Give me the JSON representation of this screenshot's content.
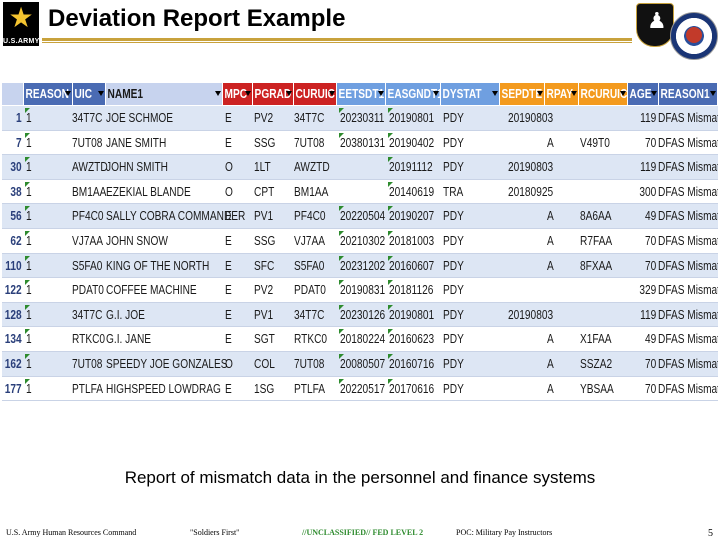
{
  "slide": {
    "title": "Deviation Report Example",
    "logo_text": "U.S.ARMY",
    "caption": "Report of mismatch data in the personnel and finance systems",
    "footer": {
      "org": "U.S. Army Human Resources Command",
      "motto": "\"Soldiers First\"",
      "classification": "//UNCLASSIFIED// FED LEVEL 2",
      "poc": "POC: Military Pay Instructors",
      "page": "5"
    }
  },
  "colors": {
    "header_blue": "#4a6bb3",
    "header_red": "#cc2222",
    "header_light_blue": "#6f9fe0",
    "header_orange": "#f39a1e",
    "row_light": "#dde6f4",
    "row_white": "#ffffff",
    "selected_header": "#c7d3ee",
    "classification_green": "#2e8b2e",
    "gold": "#c8a23c"
  },
  "table": {
    "columns": [
      {
        "key": "rownum",
        "label": ""
      },
      {
        "key": "reason",
        "label": "REASON"
      },
      {
        "key": "uic",
        "label": "UIC"
      },
      {
        "key": "name",
        "label": "NAME1"
      },
      {
        "key": "mpc",
        "label": "MPC"
      },
      {
        "key": "pgrad",
        "label": "PGRAD"
      },
      {
        "key": "curuic",
        "label": "CURUIC"
      },
      {
        "key": "eetsdt",
        "label": "EETSDT1"
      },
      {
        "key": "easgndt",
        "label": "EASGNDT1"
      },
      {
        "key": "dystat",
        "label": "DYSTAT"
      },
      {
        "key": "sepdte",
        "label": "SEPDTE"
      },
      {
        "key": "rpay",
        "label": "RPAY"
      },
      {
        "key": "rcuruic",
        "label": "RCURUIC"
      },
      {
        "key": "age",
        "label": "AGE"
      },
      {
        "key": "reason1",
        "label": "REASON1"
      }
    ],
    "rows": [
      {
        "rownum": "1",
        "reason": "1",
        "uic": "34T7C",
        "name": "JOE SCHMOE",
        "mpc": "E",
        "pgrad": "PV2",
        "curuic": "34T7C",
        "eetsdt": "20230311",
        "easgndt": "20190801",
        "dystat": "PDY",
        "sepdte": "20190803",
        "rpay": "",
        "rcuruic": "",
        "age": "119",
        "reason1": "DFAS Mismatch"
      },
      {
        "rownum": "7",
        "reason": "1",
        "uic": "7UT08",
        "name": "JANE SMITH",
        "mpc": "E",
        "pgrad": "SSG",
        "curuic": "7UT08",
        "eetsdt": "20380131",
        "easgndt": "20190402",
        "dystat": "PDY",
        "sepdte": "",
        "rpay": "A",
        "rcuruic": "V49T0",
        "age": "70",
        "reason1": "DFAS Mismatch"
      },
      {
        "rownum": "30",
        "reason": "1",
        "uic": "AWZTD",
        "name": "JOHN SMITH",
        "mpc": "O",
        "pgrad": "1LT",
        "curuic": "AWZTD",
        "eetsdt": "",
        "easgndt": "20191112",
        "dystat": "PDY",
        "sepdte": "20190803",
        "rpay": "",
        "rcuruic": "",
        "age": "119",
        "reason1": "DFAS Mismatch"
      },
      {
        "rownum": "38",
        "reason": "1",
        "uic": "BM1AA",
        "name": "EZEKIAL BLANDE",
        "mpc": "O",
        "pgrad": "CPT",
        "curuic": "BM1AA",
        "eetsdt": "",
        "easgndt": "20140619",
        "dystat": "TRA",
        "sepdte": "20180925",
        "rpay": "",
        "rcuruic": "",
        "age": "300",
        "reason1": "DFAS Mismatch"
      },
      {
        "rownum": "56",
        "reason": "1",
        "uic": "PF4C0",
        "name": "SALLY COBRA COMMANDER",
        "mpc": "E",
        "pgrad": "PV1",
        "curuic": "PF4C0",
        "eetsdt": "20220504",
        "easgndt": "20190207",
        "dystat": "PDY",
        "sepdte": "",
        "rpay": "A",
        "rcuruic": "8A6AA",
        "age": "49",
        "reason1": "DFAS Mismatch"
      },
      {
        "rownum": "62",
        "reason": "1",
        "uic": "VJ7AA",
        "name": "JOHN SNOW",
        "mpc": "E",
        "pgrad": "SSG",
        "curuic": "VJ7AA",
        "eetsdt": "20210302",
        "easgndt": "20181003",
        "dystat": "PDY",
        "sepdte": "",
        "rpay": "A",
        "rcuruic": "R7FAA",
        "age": "70",
        "reason1": "DFAS Mismatch"
      },
      {
        "rownum": "110",
        "reason": "1",
        "uic": "S5FA0",
        "name": "KING OF THE NORTH",
        "mpc": "E",
        "pgrad": "SFC",
        "curuic": "S5FA0",
        "eetsdt": "20231202",
        "easgndt": "20160607",
        "dystat": "PDY",
        "sepdte": "",
        "rpay": "A",
        "rcuruic": "8FXAA",
        "age": "70",
        "reason1": "DFAS Mismatch"
      },
      {
        "rownum": "122",
        "reason": "1",
        "uic": "PDAT0",
        "name": "COFFEE MACHINE",
        "mpc": "E",
        "pgrad": "PV2",
        "curuic": "PDAT0",
        "eetsdt": "20190831",
        "easgndt": "20181126",
        "dystat": "PDY",
        "sepdte": "",
        "rpay": "",
        "rcuruic": "",
        "age": "329",
        "reason1": "DFAS Mismatch"
      },
      {
        "rownum": "128",
        "reason": "1",
        "uic": "34T7C",
        "name": "G.I. JOE",
        "mpc": "E",
        "pgrad": "PV1",
        "curuic": "34T7C",
        "eetsdt": "20230126",
        "easgndt": "20190801",
        "dystat": "PDY",
        "sepdte": "20190803",
        "rpay": "",
        "rcuruic": "",
        "age": "119",
        "reason1": "DFAS Mismatch"
      },
      {
        "rownum": "134",
        "reason": "1",
        "uic": "RTKC0",
        "name": "G.I. JANE",
        "mpc": "E",
        "pgrad": "SGT",
        "curuic": "RTKC0",
        "eetsdt": "20180224",
        "easgndt": "20160623",
        "dystat": "PDY",
        "sepdte": "",
        "rpay": "A",
        "rcuruic": "X1FAA",
        "age": "49",
        "reason1": "DFAS Mismatch"
      },
      {
        "rownum": "162",
        "reason": "1",
        "uic": "7UT08",
        "name": "SPEEDY JOE GONZALES",
        "mpc": "O",
        "pgrad": "COL",
        "curuic": "7UT08",
        "eetsdt": "20080507",
        "easgndt": "20160716",
        "dystat": "PDY",
        "sepdte": "",
        "rpay": "A",
        "rcuruic": "SSZA2",
        "age": "70",
        "reason1": "DFAS Mismatch"
      },
      {
        "rownum": "177",
        "reason": "1",
        "uic": "PTLFA",
        "name": "HIGHSPEED LOWDRAG",
        "mpc": "E",
        "pgrad": "1SG",
        "curuic": "PTLFA",
        "eetsdt": "20220517",
        "easgndt": "20170616",
        "dystat": "PDY",
        "sepdte": "",
        "rpay": "A",
        "rcuruic": "YBSAA",
        "age": "70",
        "reason1": "DFAS Mismatch"
      }
    ]
  }
}
